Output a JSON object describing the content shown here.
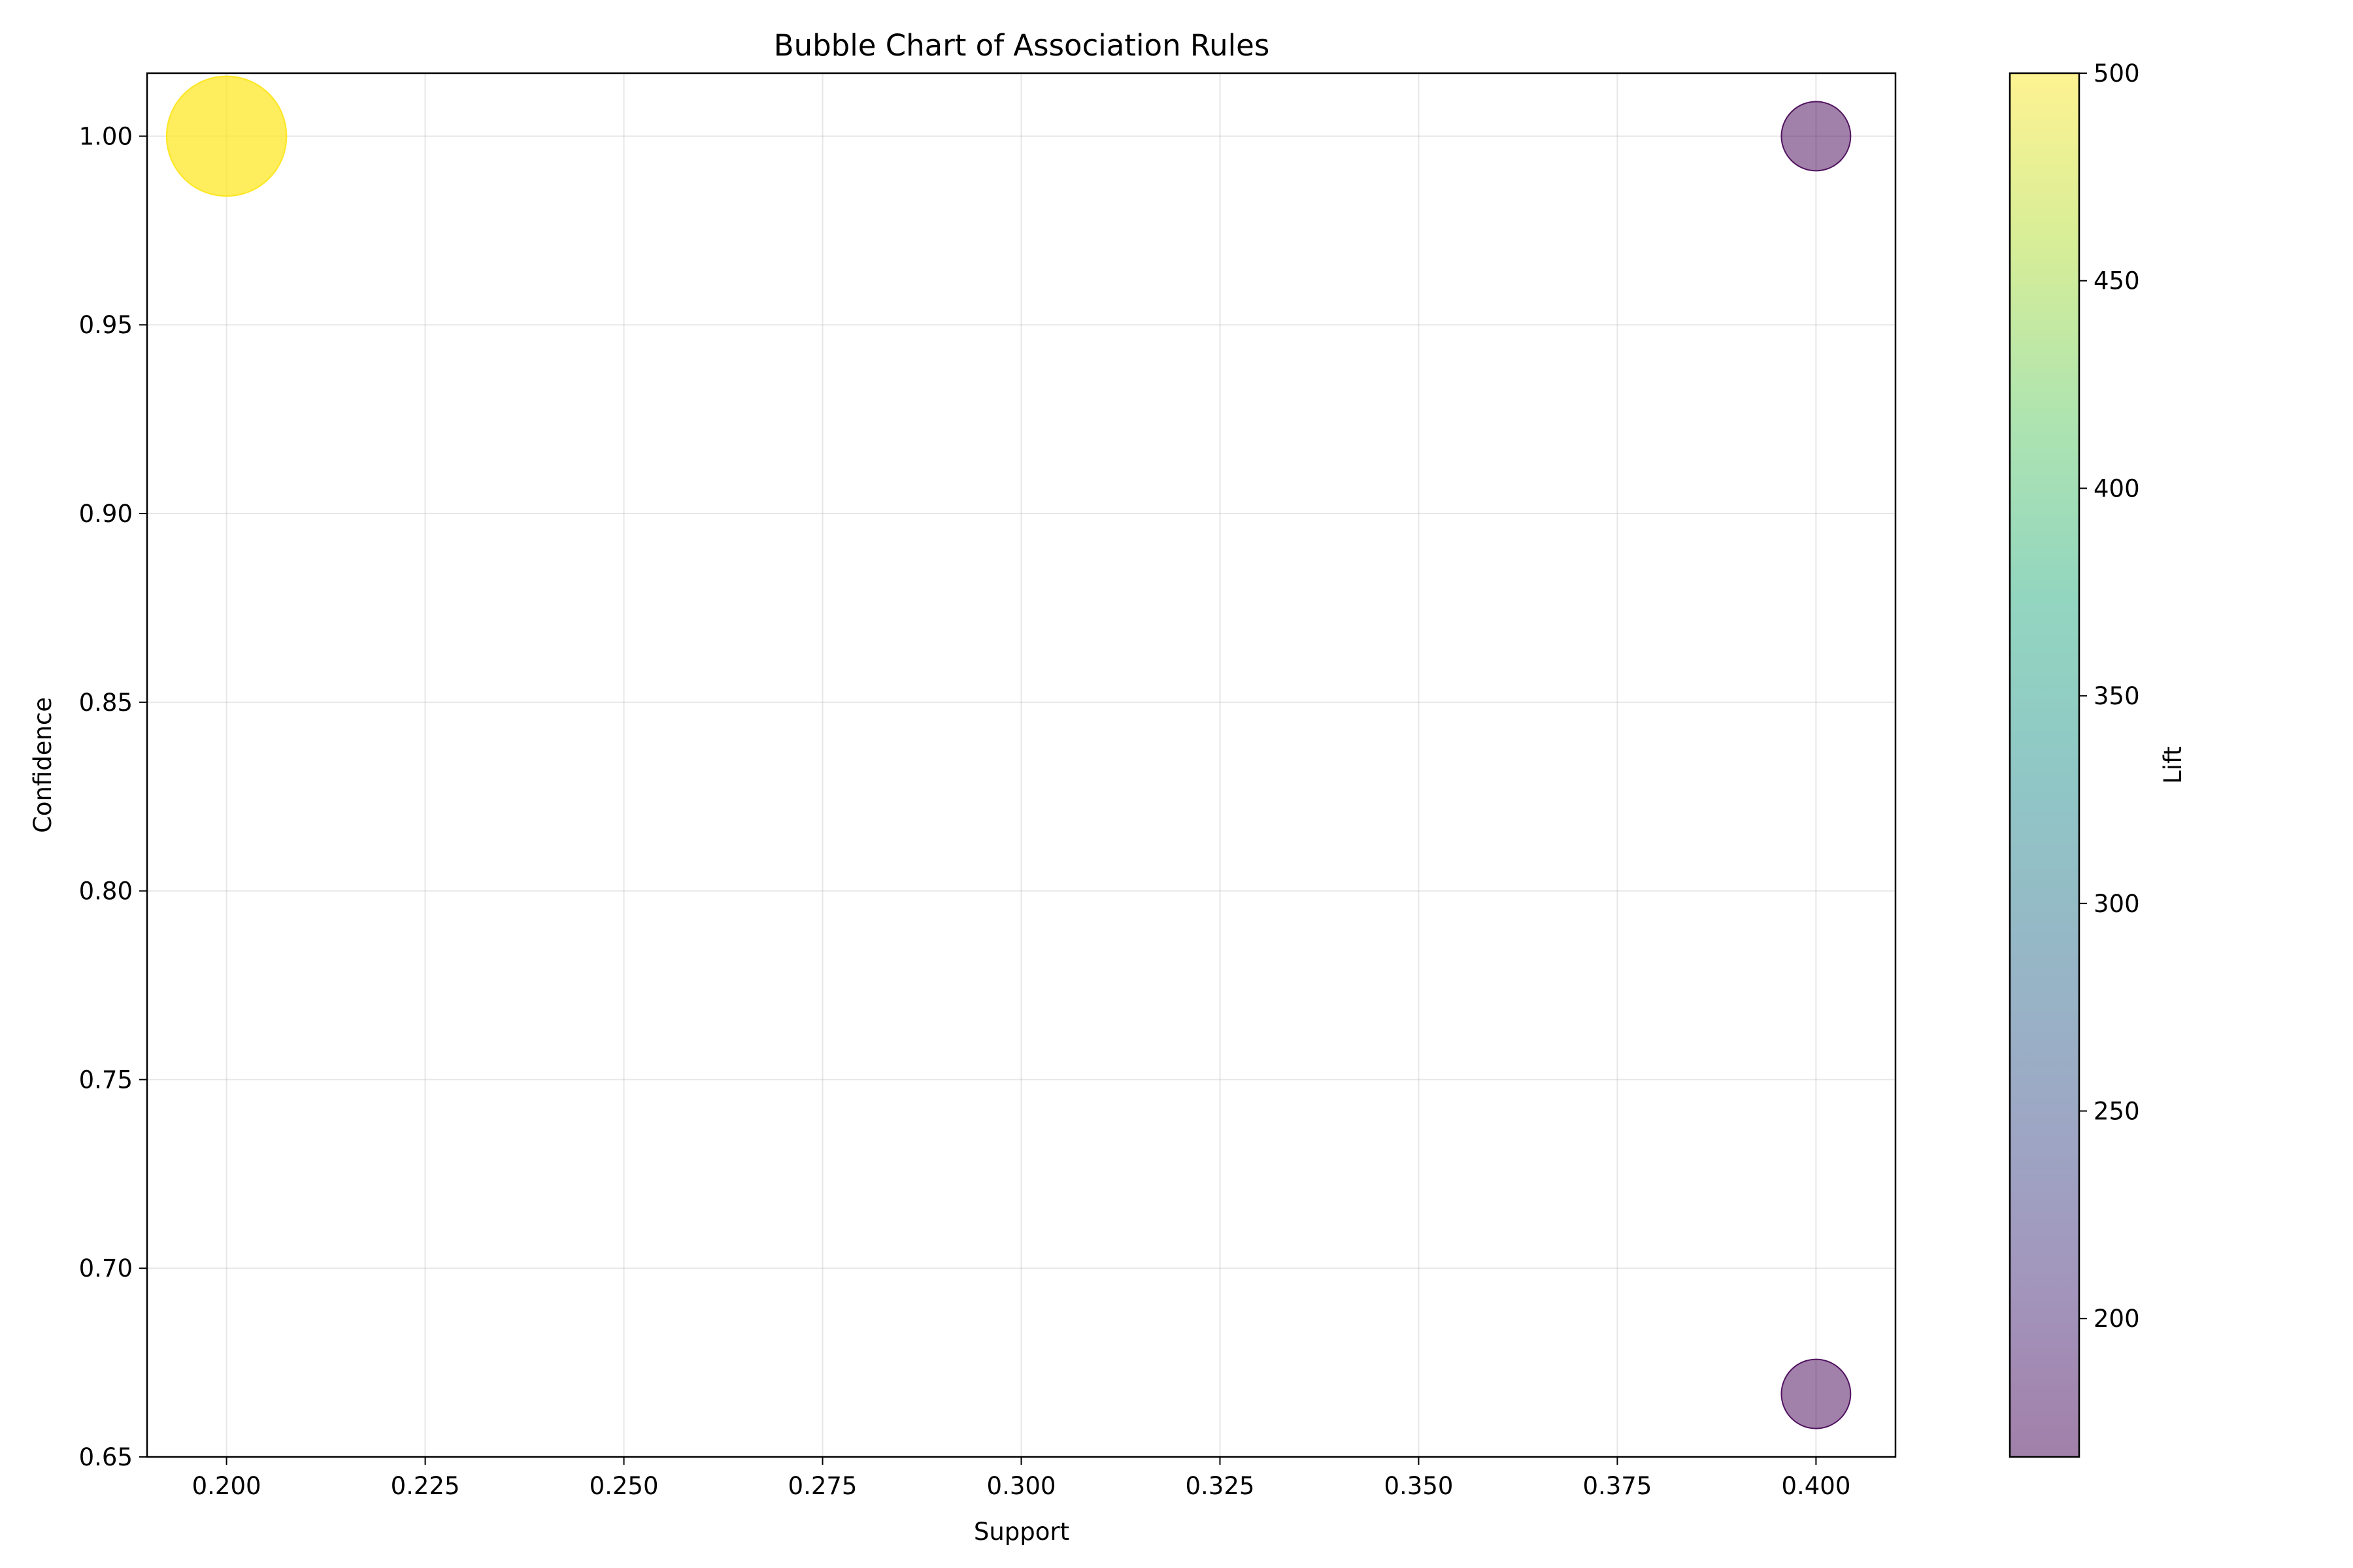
{
  "chart_data": {
    "type": "scatter",
    "title": "Bubble Chart of Association Rules",
    "xlabel": "Support",
    "ylabel": "Confidence",
    "xlim": [
      0.19,
      0.41
    ],
    "ylim": [
      0.65,
      1.0167
    ],
    "xticks": [
      "0.200",
      "0.225",
      "0.250",
      "0.275",
      "0.300",
      "0.325",
      "0.350",
      "0.375",
      "0.400"
    ],
    "xtick_values": [
      0.2,
      0.225,
      0.25,
      0.275,
      0.3,
      0.325,
      0.35,
      0.375,
      0.4
    ],
    "yticks": [
      "0.65",
      "0.70",
      "0.75",
      "0.80",
      "0.85",
      "0.90",
      "0.95",
      "1.00"
    ],
    "ytick_values": [
      0.65,
      0.7,
      0.75,
      0.8,
      0.85,
      0.9,
      0.95,
      1.0
    ],
    "grid": true,
    "points": [
      {
        "support": 0.2,
        "confidence": 1.0,
        "lift": 500
      },
      {
        "support": 0.2,
        "confidence": 1.0,
        "lift": 500
      },
      {
        "support": 0.4,
        "confidence": 1.0,
        "lift": 166.67
      },
      {
        "support": 0.4,
        "confidence": 0.6667,
        "lift": 166.67
      }
    ],
    "colorbar": {
      "label": "Lift",
      "range": [
        166.67,
        500
      ],
      "ticks": [
        "200",
        "250",
        "300",
        "350",
        "400",
        "450",
        "500"
      ],
      "tick_values": [
        200,
        250,
        300,
        350,
        400,
        450,
        500
      ],
      "colormap": "viridis"
    }
  }
}
